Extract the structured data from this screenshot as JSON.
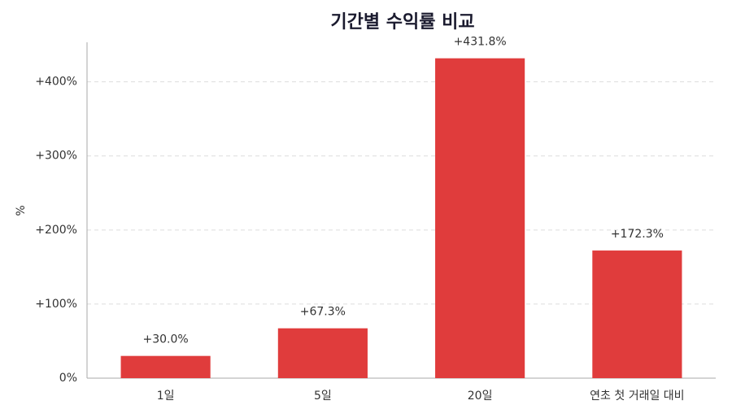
{
  "chart_data": {
    "type": "bar",
    "title": "기간별 수익률 비교",
    "y_label": "%",
    "categories": [
      "1일",
      "5일",
      "20일",
      "연초 첫 거래일 대비"
    ],
    "values": [
      30.0,
      67.3,
      431.8,
      172.3
    ],
    "value_labels": [
      "+30.0%",
      "+67.3%",
      "+431.8%",
      "+172.3%"
    ],
    "color": "#e03c3c",
    "ylim": [
      0,
      453.4
    ],
    "yticks": [
      {
        "value": 0,
        "label": "0%"
      },
      {
        "value": 100,
        "label": "+100%"
      },
      {
        "value": 200,
        "label": "+200%"
      },
      {
        "value": 300,
        "label": "+300%"
      },
      {
        "value": 400,
        "label": "+400%"
      }
    ],
    "grid": true
  }
}
